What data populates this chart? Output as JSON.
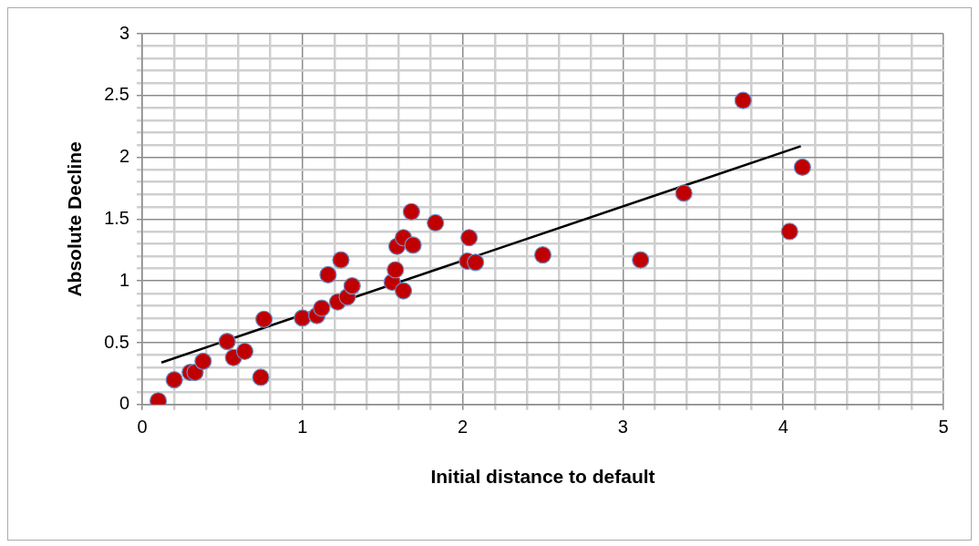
{
  "chart_data": {
    "type": "scatter",
    "xlabel": "Initial distance to default",
    "ylabel": "Absolute Decline",
    "xlim": [
      0,
      5
    ],
    "ylim": [
      0,
      3
    ],
    "xticks": [
      0,
      {
        "value": 0.2,
        "label": null
      },
      {
        "value": 0.4,
        "label": null
      },
      {
        "value": 0.6,
        "label": null
      },
      {
        "value": 0.8,
        "label": null
      },
      1,
      {
        "value": 1.2,
        "label": null
      },
      {
        "value": 1.4,
        "label": null
      },
      {
        "value": 1.6,
        "label": null
      },
      {
        "value": 1.8,
        "label": null
      },
      2,
      {
        "value": 2.2,
        "label": null
      },
      {
        "value": 2.4,
        "label": null
      },
      {
        "value": 2.6,
        "label": null
      },
      {
        "value": 2.8,
        "label": null
      },
      3,
      {
        "value": 3.2,
        "label": null
      },
      {
        "value": 3.4,
        "label": null
      },
      {
        "value": 3.6,
        "label": null
      },
      {
        "value": 3.8,
        "label": null
      },
      4,
      {
        "value": 4.2,
        "label": null
      },
      {
        "value": 4.4,
        "label": null
      },
      {
        "value": 4.6,
        "label": null
      },
      {
        "value": 4.8,
        "label": null
      },
      5
    ],
    "yticks": [
      0,
      {
        "value": 0.1,
        "label": null
      },
      {
        "value": 0.2,
        "label": null
      },
      {
        "value": 0.3,
        "label": null
      },
      {
        "value": 0.4,
        "label": null
      },
      0.5,
      {
        "value": 0.6,
        "label": null
      },
      {
        "value": 0.7,
        "label": null
      },
      {
        "value": 0.8,
        "label": null
      },
      {
        "value": 0.9,
        "label": null
      },
      1,
      {
        "value": 1.1,
        "label": null
      },
      {
        "value": 1.2,
        "label": null
      },
      {
        "value": 1.3,
        "label": null
      },
      {
        "value": 1.4,
        "label": null
      },
      1.5,
      {
        "value": 1.6,
        "label": null
      },
      {
        "value": 1.7,
        "label": null
      },
      {
        "value": 1.8,
        "label": null
      },
      {
        "value": 1.9,
        "label": null
      },
      2,
      {
        "value": 2.1,
        "label": null
      },
      {
        "value": 2.2,
        "label": null
      },
      {
        "value": 2.3,
        "label": null
      },
      {
        "value": 2.4,
        "label": null
      },
      2.5,
      {
        "value": 2.6,
        "label": null
      },
      {
        "value": 2.7,
        "label": null
      },
      {
        "value": 2.8,
        "label": null
      },
      {
        "value": 2.9,
        "label": null
      },
      3
    ],
    "grid": true,
    "legend": false,
    "marker": "circle",
    "series": [
      {
        "color": "#c00000",
        "x": [
          0.1,
          0.2,
          0.3,
          0.33,
          0.38,
          0.53,
          0.57,
          0.64,
          0.74,
          0.76,
          1.0,
          1.09,
          1.12,
          1.16,
          1.22,
          1.24,
          1.28,
          1.31,
          1.56,
          1.58,
          1.59,
          1.63,
          1.63,
          1.69,
          1.68,
          1.83,
          2.04,
          2.03,
          2.08,
          2.5,
          3.11,
          3.38,
          3.75,
          4.04,
          4.12
        ],
        "values": [
          0.03,
          0.2,
          0.26,
          0.26,
          0.35,
          0.51,
          0.38,
          0.43,
          0.22,
          0.69,
          0.7,
          0.72,
          0.78,
          1.05,
          0.83,
          1.17,
          0.87,
          0.96,
          0.99,
          1.09,
          1.28,
          0.92,
          1.35,
          1.29,
          1.56,
          1.47,
          1.35,
          1.16,
          1.15,
          1.21,
          1.17,
          1.71,
          2.46,
          1.4,
          1.92
        ]
      },
      {
        "type": "line",
        "color": "#000000",
        "marker": "none",
        "x": [
          0.12,
          4.11
        ],
        "values": [
          0.34,
          2.09
        ]
      }
    ]
  }
}
